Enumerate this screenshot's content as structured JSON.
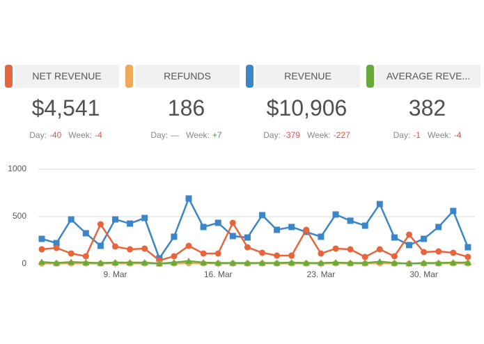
{
  "cards": [
    {
      "title": "NET REVENUE",
      "color": "#e8643c",
      "value": "$4,541",
      "day_label": "Day:",
      "day": "-40",
      "day_color": "#e0524a",
      "week_label": "Week:",
      "week": "-4",
      "week_color": "#e0524a"
    },
    {
      "title": "REFUNDS",
      "color": "#f0a95a",
      "value": "186",
      "day_label": "Day:",
      "day": "—",
      "day_color": "#888888",
      "week_label": "Week:",
      "week": "+7",
      "week_color": "#4a9a3c"
    },
    {
      "title": "REVENUE",
      "color": "#3a86c8",
      "value": "$10,906",
      "day_label": "Day:",
      "day": "-379",
      "day_color": "#e0524a",
      "week_label": "Week:",
      "week": "-227",
      "week_color": "#e0524a"
    },
    {
      "title": "AVERAGE REVE...",
      "color": "#6aaa3a",
      "value": "382",
      "day_label": "Day:",
      "day": "-1",
      "day_color": "#e0524a",
      "week_label": "Week:",
      "week": "-4",
      "week_color": "#e0524a"
    }
  ],
  "chart_data": {
    "type": "line",
    "categories": [
      null,
      null,
      null,
      null,
      null,
      "9. Mar",
      null,
      null,
      null,
      null,
      null,
      null,
      "16. Mar",
      null,
      null,
      null,
      null,
      null,
      null,
      "23. Mar",
      null,
      null,
      null,
      null,
      null,
      null,
      "30. Mar",
      null,
      null,
      null
    ],
    "series": [
      {
        "name": "Revenue",
        "color": "#3a86c8",
        "marker": "square",
        "values": [
          265,
          220,
          470,
          324,
          191,
          470,
          426,
          485,
          59,
          287,
          691,
          390,
          434,
          294,
          279,
          515,
          360,
          390,
          338,
          287,
          522,
          456,
          404,
          632,
          279,
          199,
          265,
          390,
          559,
          176
        ]
      },
      {
        "name": "Net Revenue",
        "color": "#e8643c",
        "marker": "circle",
        "values": [
          154,
          169,
          110,
          81,
          419,
          184,
          154,
          162,
          37,
          81,
          191,
          110,
          110,
          434,
          176,
          118,
          88,
          88,
          360,
          110,
          162,
          154,
          74,
          154,
          81,
          309,
          125,
          132,
          118,
          74
        ]
      },
      {
        "name": "Refunds",
        "color": "#f0a95a",
        "marker": "circle",
        "values": [
          5,
          4,
          6,
          5,
          4,
          6,
          5,
          5,
          3,
          5,
          8,
          6,
          5,
          5,
          4,
          6,
          5,
          5,
          5,
          4,
          6,
          5,
          5,
          7,
          5,
          4,
          5,
          5,
          6,
          5
        ]
      },
      {
        "name": "Average Revenue",
        "color": "#6aaa3a",
        "marker": "triangle",
        "values": [
          20,
          10,
          20,
          15,
          10,
          15,
          15,
          15,
          5,
          15,
          30,
          15,
          10,
          10,
          10,
          10,
          10,
          15,
          10,
          10,
          15,
          10,
          10,
          25,
          10,
          5,
          10,
          10,
          15,
          15
        ]
      }
    ],
    "ylim": [
      0,
      1000
    ],
    "yticks": [
      0,
      500,
      1000
    ],
    "grid": true
  }
}
